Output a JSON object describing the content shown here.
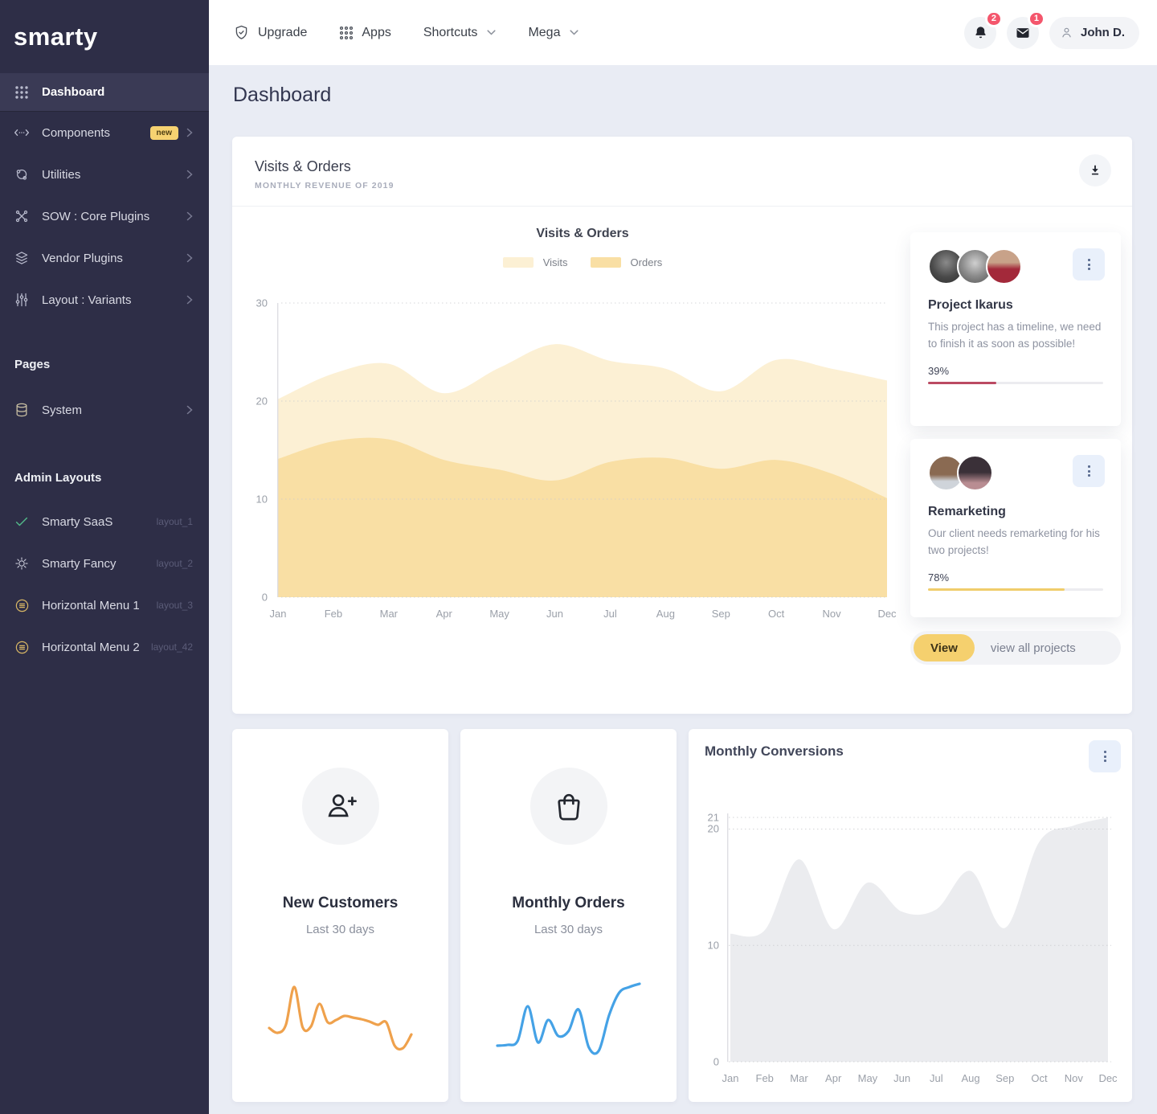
{
  "brand": {
    "logo": "smarty"
  },
  "navbar": {
    "upgrade": {
      "label": "Upgrade"
    },
    "apps": {
      "label": "Apps"
    },
    "shortcuts": {
      "label": "Shortcuts"
    },
    "mega": {
      "label": "Mega"
    },
    "bell_badge": "2",
    "mail_badge": "1",
    "user": "John D."
  },
  "sidebar": {
    "items": [
      {
        "label": "Dashboard"
      },
      {
        "label": "Components",
        "badge": "new"
      },
      {
        "label": "Utilities"
      },
      {
        "label": "SOW : Core Plugins"
      },
      {
        "label": "Vendor Plugins"
      },
      {
        "label": "Layout : Variants"
      }
    ],
    "pages_heading": "Pages",
    "system": {
      "label": "System"
    },
    "admin_heading": "Admin Layouts",
    "admin_items": [
      {
        "label": "Smarty SaaS",
        "tag": "layout_1"
      },
      {
        "label": "Smarty Fancy",
        "tag": "layout_2"
      },
      {
        "label": "Horizontal Menu 1",
        "tag": "layout_3"
      },
      {
        "label": "Horizontal Menu 2",
        "tag": "layout_42"
      }
    ]
  },
  "page": {
    "title": "Dashboard"
  },
  "visits_card": {
    "title": "Visits & Orders",
    "subtitle": "MONTHLY REVENUE OF 2019"
  },
  "projects": [
    {
      "title": "Project Ikarus",
      "description": "This project has a timeline, we need to finish it as soon as possible!",
      "percent": "39%",
      "value": 39,
      "color": "#bb4a62",
      "avatar_count": 3
    },
    {
      "title": "Remarketing",
      "description": "Our client needs remarketing for his two projects!",
      "percent": "78%",
      "value": 78,
      "color": "#f0cd6b",
      "avatar_count": 2
    }
  ],
  "projects_footer": {
    "view_label": "View",
    "all_label": "view all projects"
  },
  "stats_cards": [
    {
      "title": "New Customers",
      "subtitle": "Last 30 days"
    },
    {
      "title": "Monthly Orders",
      "subtitle": "Last 30 days"
    }
  ],
  "theme": {
    "sidebar_bg": "#2e2e47",
    "content_bg": "#e9ecf4",
    "accent_yellow": "#f5d06e",
    "badge_red": "#f4566c"
  },
  "chart_data": [
    {
      "id": "visits_orders",
      "type": "area",
      "title": "Visits & Orders",
      "categories": [
        "Jan",
        "Feb",
        "Mar",
        "Apr",
        "May",
        "Jun",
        "Jul",
        "Aug",
        "Sep",
        "Oct",
        "Nov",
        "Dec"
      ],
      "series": [
        {
          "name": "Visits",
          "color": "#fcf0d4",
          "values": [
            20.2,
            22.8,
            23.8,
            20.8,
            23.4,
            25.8,
            24.1,
            23.3,
            21.0,
            24.2,
            23.3,
            22.1
          ]
        },
        {
          "name": "Orders",
          "color": "#f9dfa4",
          "values": [
            14.1,
            15.9,
            16.1,
            14.0,
            13.0,
            11.9,
            13.8,
            14.2,
            13.1,
            14.0,
            12.6,
            10.1
          ]
        }
      ],
      "ylim": [
        0,
        30
      ],
      "yticks": [
        0,
        10,
        20,
        30
      ],
      "grid": "dotted-horizontal",
      "legend_position": "top"
    },
    {
      "id": "monthly_conversions",
      "type": "area",
      "title": "Monthly Conversions",
      "categories": [
        "Jan",
        "Feb",
        "Mar",
        "Apr",
        "May",
        "Jun",
        "Jul",
        "Aug",
        "Sep",
        "Oct",
        "Nov",
        "Dec"
      ],
      "series": [
        {
          "name": "Conversions",
          "color": "#ebecef",
          "values": [
            11.0,
            11.3,
            17.4,
            11.4,
            15.4,
            12.9,
            13.1,
            16.4,
            11.5,
            18.9,
            20.3,
            21.0
          ]
        }
      ],
      "ylim": [
        0,
        21
      ],
      "yticks": [
        0,
        10,
        20,
        21
      ],
      "grid": "dotted-horizontal",
      "legend_position": "none"
    },
    {
      "id": "new_customers_spark",
      "type": "line",
      "color": "#efa14c",
      "values": [
        4.2,
        3.6,
        4.6,
        9.3,
        4.3,
        4.4,
        7.2,
        4.9,
        5.2,
        5.7,
        5.5,
        5.3,
        5.0,
        4.6,
        4.9,
        2.0,
        1.7,
        3.4
      ]
    },
    {
      "id": "monthly_orders_spark",
      "type": "line",
      "color": "#45a2e6",
      "values": [
        2.0,
        2.1,
        2.6,
        6.9,
        2.4,
        5.2,
        3.2,
        3.8,
        6.5,
        1.8,
        1.4,
        5.8,
        8.6,
        9.3,
        9.7
      ]
    }
  ]
}
